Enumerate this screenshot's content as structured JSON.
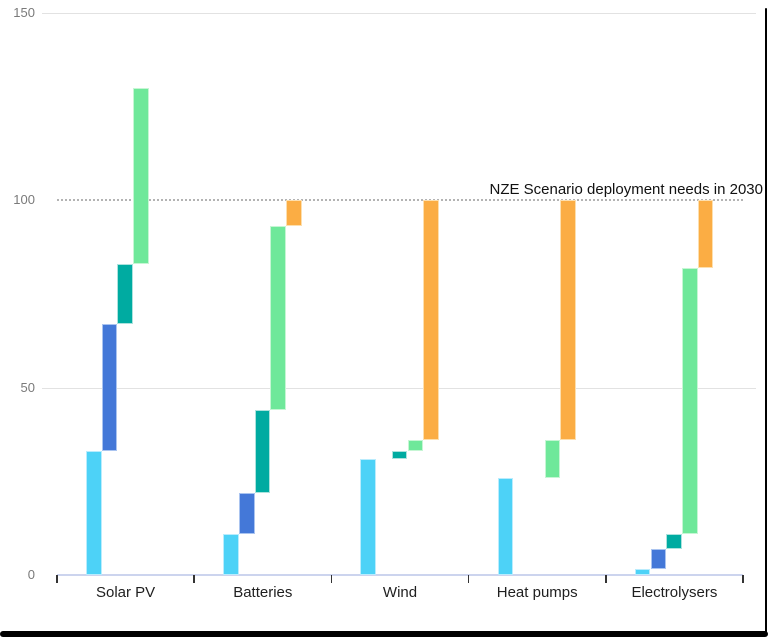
{
  "chart_data": {
    "type": "waterfall",
    "title": "",
    "annotation": "NZE Scenario deployment needs in 2030",
    "ylim": [
      0,
      150
    ],
    "yticks": [
      0,
      50,
      100,
      150
    ],
    "reference_line": {
      "value": 100,
      "style": "dotted"
    },
    "grid": "horizontal solid lines at 50 and 150, dotted at 100",
    "legend": "none",
    "categories": [
      "Solar PV",
      "Batteries",
      "Wind",
      "Heat pumps",
      "Electrolysers"
    ],
    "palette": {
      "cyan": {
        "fill": "#4dd2f7",
        "stroke": "#b9ecfd"
      },
      "blue": {
        "fill": "#4478d8",
        "stroke": "#aac4f0"
      },
      "teal": {
        "fill": "#00aba1",
        "stroke": "#ace2dd"
      },
      "green": {
        "fill": "#6fe89a",
        "stroke": "#c6f6d4"
      },
      "orange": {
        "fill": "#fbad44",
        "stroke": "#fddfae"
      }
    },
    "axis_colors": {
      "baseline": "#ccd4ee",
      "gridline": "#e2e2e2",
      "dotted_reference": "#b3b3b3",
      "y_labels": "#7a7a7a",
      "x_labels": "#1f1f1f",
      "tick_marks": "#333333"
    },
    "groups": [
      {
        "category": "Solar PV",
        "segments": [
          {
            "color": "cyan",
            "slot": 0,
            "from": 0,
            "to": 33
          },
          {
            "color": "blue",
            "slot": 1,
            "from": 33,
            "to": 67
          },
          {
            "color": "teal",
            "slot": 2,
            "from": 67,
            "to": 83
          },
          {
            "color": "green",
            "slot": 3,
            "from": 83,
            "to": 130
          }
        ]
      },
      {
        "category": "Batteries",
        "segments": [
          {
            "color": "cyan",
            "slot": 0,
            "from": 0,
            "to": 11
          },
          {
            "color": "blue",
            "slot": 1,
            "from": 11,
            "to": 22
          },
          {
            "color": "teal",
            "slot": 2,
            "from": 22,
            "to": 44
          },
          {
            "color": "green",
            "slot": 3,
            "from": 44,
            "to": 93
          },
          {
            "color": "orange",
            "slot": 4,
            "from": 93,
            "to": 100
          }
        ]
      },
      {
        "category": "Wind",
        "segments": [
          {
            "color": "cyan",
            "slot": 0,
            "from": 0,
            "to": 31
          },
          {
            "color": "teal",
            "slot": 2,
            "from": 31,
            "to": 33
          },
          {
            "color": "green",
            "slot": 3,
            "from": 33,
            "to": 36
          },
          {
            "color": "orange",
            "slot": 4,
            "from": 36,
            "to": 100
          }
        ]
      },
      {
        "category": "Heat pumps",
        "segments": [
          {
            "color": "cyan",
            "slot": 0,
            "from": 0,
            "to": 26
          },
          {
            "color": "green",
            "slot": 3,
            "from": 26,
            "to": 36
          },
          {
            "color": "orange",
            "slot": 4,
            "from": 36,
            "to": 100
          }
        ]
      },
      {
        "category": "Electrolysers",
        "segments": [
          {
            "color": "cyan",
            "slot": 0,
            "from": 0,
            "to": 1.5
          },
          {
            "color": "blue",
            "slot": 1,
            "from": 1.5,
            "to": 7
          },
          {
            "color": "teal",
            "slot": 2,
            "from": 7,
            "to": 11
          },
          {
            "color": "green",
            "slot": 3,
            "from": 11,
            "to": 82
          },
          {
            "color": "orange",
            "slot": 4,
            "from": 82,
            "to": 100
          }
        ]
      }
    ]
  }
}
